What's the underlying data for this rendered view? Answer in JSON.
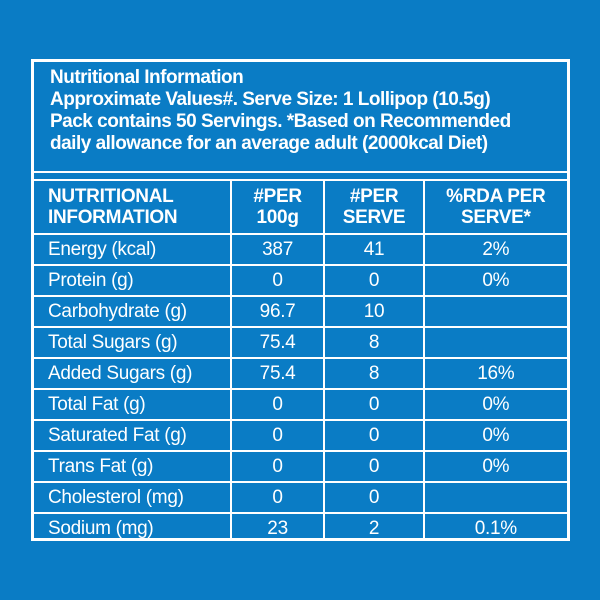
{
  "colors": {
    "background": "#0a7cc5",
    "foreground": "#ffffff"
  },
  "label": {
    "header": {
      "title": "Nutritional Information",
      "line2": "Approximate Values#. Serve Size: 1 Lollipop (10.5g)",
      "line3": "Pack contains 50 Servings. *Based on Recommended",
      "line4": "daily allowance for an average adult (2000kcal Diet)"
    },
    "table": {
      "columns": [
        {
          "line1": "NUTRITIONAL",
          "line2": "INFORMATION"
        },
        {
          "line1": "#PER",
          "line2": "100g"
        },
        {
          "line1": "#PER",
          "line2": "SERVE"
        },
        {
          "line1": "%RDA PER",
          "line2": "SERVE*"
        }
      ],
      "rows": [
        {
          "nutrient": "Energy (kcal)",
          "per_100g": "387",
          "per_serve": "41",
          "rda_per_serve": "2%"
        },
        {
          "nutrient": "Protein (g)",
          "per_100g": "0",
          "per_serve": "0",
          "rda_per_serve": "0%"
        },
        {
          "nutrient": "Carbohydrate (g)",
          "per_100g": "96.7",
          "per_serve": "10",
          "rda_per_serve": ""
        },
        {
          "nutrient": "Total Sugars (g)",
          "per_100g": "75.4",
          "per_serve": "8",
          "rda_per_serve": ""
        },
        {
          "nutrient": "Added Sugars (g)",
          "per_100g": "75.4",
          "per_serve": "8",
          "rda_per_serve": "16%"
        },
        {
          "nutrient": "Total Fat (g)",
          "per_100g": "0",
          "per_serve": "0",
          "rda_per_serve": "0%"
        },
        {
          "nutrient": "Saturated Fat (g)",
          "per_100g": "0",
          "per_serve": "0",
          "rda_per_serve": "0%"
        },
        {
          "nutrient": "Trans Fat (g)",
          "per_100g": "0",
          "per_serve": "0",
          "rda_per_serve": "0%"
        },
        {
          "nutrient": "Cholesterol (mg)",
          "per_100g": "0",
          "per_serve": "0",
          "rda_per_serve": ""
        },
        {
          "nutrient": "Sodium (mg)",
          "per_100g": "23",
          "per_serve": "2",
          "rda_per_serve": "0.1%"
        }
      ]
    }
  }
}
